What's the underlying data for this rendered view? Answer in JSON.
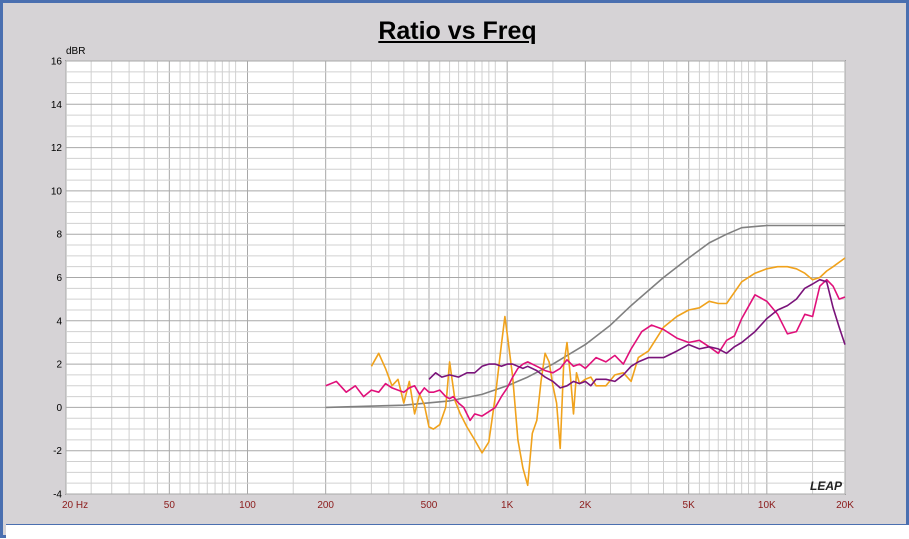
{
  "chart_data": {
    "type": "line",
    "title": "Ratio vs Freq",
    "ylabel": "dBR",
    "x_scale": "log",
    "xlim": [
      20,
      20000
    ],
    "ylim": [
      -4,
      16
    ],
    "grid": true,
    "watermark": "LEAP",
    "y_ticks": [
      "16",
      "14",
      "12",
      "10",
      "8",
      "6",
      "4",
      "2",
      "0",
      "-2",
      "-4"
    ],
    "x_ticks": [
      {
        "label": "20  Hz",
        "value": 20
      },
      {
        "label": "50",
        "value": 50
      },
      {
        "label": "100",
        "value": 100
      },
      {
        "label": "200",
        "value": 200
      },
      {
        "label": "500",
        "value": 500
      },
      {
        "label": "1K",
        "value": 1000
      },
      {
        "label": "2K",
        "value": 2000
      },
      {
        "label": "5K",
        "value": 5000
      },
      {
        "label": "10K",
        "value": 10000
      },
      {
        "label": "20K",
        "value": 20000
      }
    ],
    "series": [
      {
        "color": "#808080",
        "x": [
          200,
          400,
          600,
          800,
          1000,
          1200,
          1500,
          2000,
          2500,
          3000,
          4000,
          5000,
          6000,
          7000,
          8000,
          10000,
          15000,
          20000
        ],
        "y": [
          0,
          0.1,
          0.3,
          0.6,
          1.0,
          1.4,
          2.0,
          2.9,
          3.8,
          4.7,
          6.0,
          6.9,
          7.6,
          8.0,
          8.3,
          8.4,
          8.4,
          8.4
        ]
      },
      {
        "color": "#f0a21c",
        "x": [
          300,
          320,
          340,
          360,
          380,
          400,
          420,
          440,
          460,
          480,
          500,
          520,
          550,
          580,
          600,
          630,
          660,
          700,
          750,
          800,
          850,
          900,
          950,
          980,
          1000,
          1050,
          1100,
          1150,
          1200,
          1250,
          1300,
          1350,
          1400,
          1450,
          1500,
          1550,
          1600,
          1650,
          1700,
          1750,
          1800,
          1850,
          1900,
          2000,
          2100,
          2200,
          2400,
          2600,
          2800,
          3000,
          3200,
          3500,
          4000,
          4500,
          5000,
          5500,
          6000,
          6500,
          7000,
          8000,
          9000,
          10000,
          11000,
          12000,
          13000,
          14000,
          15000,
          16000,
          17000,
          18000,
          20000
        ],
        "y": [
          1.9,
          2.5,
          1.8,
          1.0,
          1.3,
          0.2,
          1.2,
          -0.3,
          0.6,
          0.1,
          -0.9,
          -1.0,
          -0.8,
          0.0,
          2.1,
          0.3,
          -0.3,
          -0.9,
          -1.5,
          -2.1,
          -1.6,
          0.5,
          2.9,
          4.2,
          3.4,
          1.4,
          -1.5,
          -2.8,
          -3.6,
          -1.2,
          -0.6,
          1.2,
          2.5,
          2.1,
          1.0,
          0.2,
          -1.9,
          1.9,
          3.0,
          1.5,
          -0.3,
          1.6,
          1.1,
          1.3,
          1.4,
          1.0,
          1.0,
          1.5,
          1.6,
          1.2,
          2.3,
          2.6,
          3.7,
          4.2,
          4.5,
          4.6,
          4.9,
          4.8,
          4.8,
          5.8,
          6.2,
          6.4,
          6.5,
          6.5,
          6.4,
          6.2,
          5.9,
          6.0,
          6.3,
          6.5,
          6.9
        ]
      },
      {
        "color": "#e0107a",
        "x": [
          200,
          220,
          240,
          260,
          280,
          300,
          320,
          340,
          360,
          380,
          400,
          420,
          440,
          460,
          480,
          500,
          520,
          550,
          580,
          600,
          620,
          650,
          680,
          700,
          720,
          750,
          800,
          850,
          900,
          950,
          1000,
          1050,
          1100,
          1150,
          1200,
          1300,
          1400,
          1500,
          1600,
          1700,
          1800,
          1900,
          2000,
          2200,
          2400,
          2600,
          2800,
          3000,
          3300,
          3600,
          4000,
          4500,
          5000,
          5500,
          6000,
          6500,
          7000,
          7500,
          8000,
          9000,
          10000,
          11000,
          12000,
          13000,
          14000,
          15000,
          16000,
          17000,
          18000,
          19000,
          20000
        ],
        "y": [
          1.0,
          1.2,
          0.7,
          1.0,
          0.5,
          0.8,
          0.7,
          1.1,
          0.9,
          0.8,
          0.7,
          0.9,
          1.0,
          0.6,
          0.9,
          0.7,
          0.7,
          0.8,
          0.5,
          0.4,
          0.5,
          0.2,
          0.0,
          -0.3,
          -0.6,
          -0.3,
          -0.4,
          -0.2,
          0.0,
          0.5,
          0.9,
          1.4,
          1.8,
          2.0,
          2.1,
          1.9,
          1.7,
          1.6,
          1.8,
          2.2,
          1.9,
          2.0,
          1.8,
          2.3,
          2.1,
          2.4,
          2.0,
          2.7,
          3.5,
          3.8,
          3.6,
          3.2,
          3.0,
          3.1,
          2.8,
          2.5,
          3.1,
          3.3,
          4.1,
          5.2,
          4.9,
          4.3,
          3.4,
          3.5,
          4.3,
          4.2,
          5.6,
          5.9,
          5.6,
          5.0,
          5.1
        ]
      },
      {
        "color": "#7a137a",
        "x": [
          500,
          530,
          560,
          600,
          650,
          700,
          750,
          800,
          850,
          900,
          950,
          1000,
          1050,
          1100,
          1150,
          1200,
          1300,
          1400,
          1500,
          1600,
          1700,
          1800,
          1900,
          2000,
          2100,
          2200,
          2400,
          2600,
          2800,
          3000,
          3200,
          3500,
          4000,
          4500,
          5000,
          5500,
          6000,
          6500,
          7000,
          7500,
          8000,
          9000,
          10000,
          11000,
          12000,
          13000,
          14000,
          15000,
          16000,
          17000,
          18000,
          19000,
          20000
        ],
        "y": [
          1.3,
          1.6,
          1.4,
          1.5,
          1.4,
          1.6,
          1.6,
          1.9,
          2.0,
          2.0,
          1.9,
          2.0,
          2.0,
          1.9,
          1.8,
          1.9,
          1.7,
          1.4,
          1.2,
          0.9,
          1.0,
          1.2,
          1.1,
          1.2,
          1.0,
          1.3,
          1.3,
          1.2,
          1.5,
          1.9,
          2.1,
          2.3,
          2.3,
          2.6,
          2.9,
          2.7,
          2.8,
          2.7,
          2.5,
          2.8,
          3.0,
          3.5,
          4.1,
          4.5,
          4.7,
          5.0,
          5.5,
          5.7,
          5.9,
          5.8,
          4.6,
          3.7,
          2.9
        ]
      }
    ]
  }
}
